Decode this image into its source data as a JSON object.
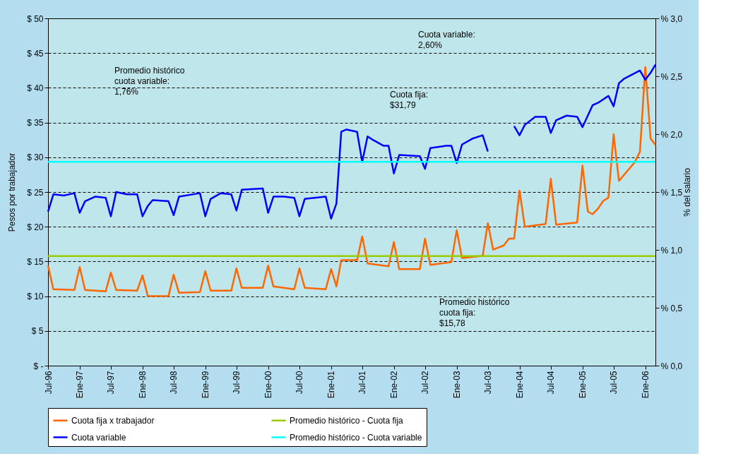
{
  "chart_data": {
    "type": "line",
    "ylabel": "Pesos por trabajador",
    "y2label": "% del salario",
    "xlim": [
      "1996-07",
      "2006-03"
    ],
    "xticks": [
      {
        "value": "1996-07",
        "label": "Jul-96"
      },
      {
        "value": "1997-01",
        "label": "Ene-97"
      },
      {
        "value": "1997-07",
        "label": "Jul-97"
      },
      {
        "value": "1998-01",
        "label": "Ene-98"
      },
      {
        "value": "1998-07",
        "label": "Jul-98"
      },
      {
        "value": "1999-01",
        "label": "Ene-99"
      },
      {
        "value": "1999-07",
        "label": "Jul-99"
      },
      {
        "value": "2000-01",
        "label": "Ene-00"
      },
      {
        "value": "2000-07",
        "label": "Jul-00"
      },
      {
        "value": "2001-01",
        "label": "Ene-01"
      },
      {
        "value": "2001-07",
        "label": "Jul-01"
      },
      {
        "value": "2002-01",
        "label": "Ene-02"
      },
      {
        "value": "2002-07",
        "label": "Jul-02"
      },
      {
        "value": "2003-01",
        "label": "Ene-03"
      },
      {
        "value": "2003-07",
        "label": "Jul-03"
      },
      {
        "value": "2004-01",
        "label": "Ene-04"
      },
      {
        "value": "2004-07",
        "label": "Jul-04"
      },
      {
        "value": "2005-01",
        "label": "Ene-05"
      },
      {
        "value": "2005-07",
        "label": "Jul-05"
      },
      {
        "value": "2006-01",
        "label": "Ene-06"
      }
    ],
    "ylim": [
      0,
      50
    ],
    "yticks": [
      {
        "value": 0,
        "label": "$ -"
      },
      {
        "value": 5,
        "label": "$ 5"
      },
      {
        "value": 10,
        "label": "$ 10"
      },
      {
        "value": 15,
        "label": "$ 15"
      },
      {
        "value": 20,
        "label": "$ 20"
      },
      {
        "value": 25,
        "label": "$ 25"
      },
      {
        "value": 30,
        "label": "$ 30"
      },
      {
        "value": 35,
        "label": "$ 35"
      },
      {
        "value": 40,
        "label": "$ 40"
      },
      {
        "value": 45,
        "label": "$ 45"
      },
      {
        "value": 50,
        "label": "$ 50"
      }
    ],
    "y2lim": [
      0,
      3
    ],
    "y2ticks": [
      {
        "value": 0,
        "label": "% 0,0"
      },
      {
        "value": 0.5,
        "label": "% 0,5"
      },
      {
        "value": 1,
        "label": "% 1,0"
      },
      {
        "value": 1.5,
        "label": "% 1,5"
      },
      {
        "value": 2,
        "label": "% 2,0"
      },
      {
        "value": 2.5,
        "label": "% 2,5"
      },
      {
        "value": 3,
        "label": "% 3,0"
      }
    ],
    "grid": "y",
    "legend": "bottom",
    "line_style": "solid",
    "marker": "none",
    "series": [
      {
        "name": "Cuota fija x trabajador",
        "color": "#ff6600",
        "x": [
          "1996-07",
          "1996-08",
          "1996-12",
          "1997-01",
          "1997-02",
          "1997-06",
          "1997-07",
          "1997-08",
          "1997-12",
          "1998-01",
          "1998-02",
          "1998-06",
          "1998-07",
          "1998-08",
          "1998-12",
          "1999-01",
          "1999-02",
          "1999-06",
          "1999-07",
          "1999-08",
          "1999-12",
          "2000-01",
          "2000-02",
          "2000-04",
          "2000-06",
          "2000-07",
          "2000-08",
          "2000-12",
          "2001-01",
          "2001-02",
          "2001-03",
          "2001-06",
          "2001-07",
          "2001-08",
          "2001-11",
          "2001-12",
          "2002-01",
          "2002-02",
          "2002-06",
          "2002-07",
          "2002-08",
          "2002-12",
          "2003-01",
          "2003-02",
          "2003-06",
          "2003-07",
          "2003-08",
          "2003-10",
          "2003-11",
          "2003-12",
          "2004-01",
          "2004-02",
          "2004-04",
          "2004-06",
          "2004-07",
          "2004-08",
          "2004-12",
          "2005-01",
          "2005-02",
          "2005-03",
          "2005-04",
          "2005-05",
          "2005-06",
          "2005-07",
          "2005-08",
          "2005-11",
          "2005-12",
          "2006-01",
          "2006-02",
          "2006-03"
        ],
        "values": [
          14.4,
          11.0,
          10.9,
          14.2,
          10.9,
          10.7,
          13.4,
          10.9,
          10.8,
          13.0,
          10.0,
          10.0,
          13.1,
          10.5,
          10.6,
          13.6,
          10.8,
          10.8,
          14.0,
          11.2,
          11.2,
          14.4,
          11.4,
          11.2,
          11.0,
          14.0,
          11.2,
          11.0,
          13.9,
          11.4,
          15.2,
          15.2,
          18.6,
          14.7,
          14.4,
          14.3,
          17.8,
          13.9,
          13.9,
          18.3,
          14.5,
          14.9,
          19.5,
          15.5,
          15.8,
          20.5,
          16.7,
          17.3,
          18.3,
          18.3,
          25.2,
          20.0,
          20.2,
          20.4,
          26.9,
          20.3,
          20.6,
          28.8,
          22.2,
          21.8,
          22.6,
          23.7,
          24.2,
          33.3,
          26.6,
          29.3,
          30.8,
          43.0,
          32.7,
          31.79
        ]
      },
      {
        "name": "Promedio histórico - Cuota fija",
        "color": "#99cc00",
        "x": [
          "1996-07",
          "2006-03"
        ],
        "values": [
          15.78,
          15.78
        ]
      },
      {
        "name": "Cuota variable",
        "color": "#0000ff",
        "axis": "y2",
        "x": [
          "1996-07",
          "1996-08",
          "1996-10",
          "1996-12",
          "1997-01",
          "1997-02",
          "1997-04",
          "1997-06",
          "1997-07",
          "1997-08",
          "1997-10",
          "1997-12",
          "1998-01",
          "1998-02",
          "1998-03",
          "1998-06",
          "1998-07",
          "1998-08",
          "1998-12",
          "1999-01",
          "1999-02",
          "1999-04",
          "1999-06",
          "1999-07",
          "1999-08",
          "1999-12",
          "2000-01",
          "2000-02",
          "2000-04",
          "2000-06",
          "2000-07",
          "2000-08",
          "2000-12",
          "2001-01",
          "2001-02",
          "2001-03",
          "2001-04",
          "2001-06",
          "2001-07",
          "2001-08",
          "2001-09",
          "2001-11",
          "2001-12",
          "2002-01",
          "2002-02",
          "2002-06",
          "2002-07",
          "2002-08",
          "2002-11",
          "2002-12",
          "2003-01",
          "2003-02",
          "2003-04",
          "2003-06",
          "2003-07",
          "2003-09",
          "2003-12",
          "2004-01",
          "2004-02",
          "2004-04",
          "2004-06",
          "2004-07",
          "2004-08",
          "2004-10",
          "2004-12",
          "2005-01",
          "2005-02",
          "2005-03",
          "2005-04",
          "2005-06",
          "2005-07",
          "2005-08",
          "2005-09",
          "2005-12",
          "2006-01",
          "2006-02",
          "2006-03"
        ],
        "values": [
          1.33,
          1.48,
          1.47,
          1.49,
          1.32,
          1.42,
          1.46,
          1.45,
          1.29,
          1.5,
          1.48,
          1.48,
          1.29,
          1.38,
          1.43,
          1.42,
          1.3,
          1.46,
          1.49,
          1.29,
          1.44,
          1.49,
          1.48,
          1.34,
          1.52,
          1.53,
          1.32,
          1.46,
          1.46,
          1.45,
          1.29,
          1.44,
          1.46,
          1.27,
          1.4,
          2.02,
          2.04,
          2.02,
          1.76,
          1.98,
          1.95,
          1.9,
          1.9,
          1.66,
          1.82,
          1.81,
          1.7,
          1.88,
          1.9,
          1.9,
          1.75,
          1.91,
          1.96,
          1.99,
          1.85,
          null,
          2.07,
          1.99,
          2.08,
          2.15,
          2.15,
          2.01,
          2.12,
          2.16,
          2.15,
          2.06,
          2.16,
          2.25,
          2.27,
          2.33,
          2.24,
          2.44,
          2.48,
          2.55,
          2.47,
          2.53,
          2.6
        ]
      },
      {
        "name": "Promedio histórico - Cuota variable",
        "color": "#00ffff",
        "axis": "y2",
        "x": [
          "1996-07",
          "2006-03"
        ],
        "values": [
          1.76,
          1.76
        ]
      }
    ],
    "annotations": [
      "Promedio histórico\ncuota variable:\n1,76%",
      "Cuota fija:\n$31,79",
      "Cuota variable:\n2,60%",
      "Promedio histórico\ncuota fija:\n$15,78"
    ]
  }
}
